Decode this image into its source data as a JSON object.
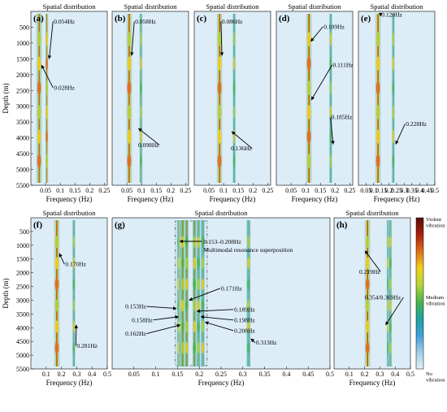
{
  "colorbar": {
    "top_label": "Violent vibration",
    "mid_label": "Medium vibration",
    "bottom_label": "No vibration",
    "colors": [
      "#e6f2fa",
      "#9fcdea",
      "#3f9fd8",
      "#1fa3a0",
      "#48b64c",
      "#b8d43a",
      "#f0d020",
      "#e07018",
      "#a82010",
      "#5a0c06"
    ]
  },
  "multimodal": {
    "range_label": "0.153–0.208Hz",
    "desc_label": "Multimodal resonance superposition",
    "box_color": "#555555",
    "text_color": "#8a5a3a"
  },
  "chart_data": [
    {
      "type": "heatmap",
      "panel": "(a)",
      "title": "Spatial distribution",
      "xlabel": "Frequency (Hz)",
      "ylabel": "Depth (m)",
      "xlim": [
        0.0,
        0.26
      ],
      "ylim": [
        0,
        5500
      ],
      "xticks": [
        0.05,
        0.1,
        0.15,
        0.2,
        0.25
      ],
      "yticks": [
        500,
        1000,
        1500,
        2000,
        2500,
        3000,
        3500,
        4000,
        4500,
        5000,
        5500
      ],
      "bands": [
        {
          "f": 0.028,
          "intensity": 0.85
        },
        {
          "f": 0.054,
          "intensity": 0.75
        }
      ],
      "annotations": [
        {
          "label": "0.054Hz",
          "f": 0.054
        },
        {
          "label": "0.028Hz",
          "f": 0.028
        }
      ]
    },
    {
      "type": "heatmap",
      "panel": "(b)",
      "title": "Spatial distribution",
      "xlabel": "Frequency (Hz)",
      "xlim": [
        0.0,
        0.26
      ],
      "xticks": [
        0.05,
        0.1,
        0.15,
        0.2,
        0.25
      ],
      "bands": [
        {
          "f": 0.058,
          "intensity": 1.0
        },
        {
          "f": 0.098,
          "intensity": 0.45
        }
      ],
      "annotations": [
        {
          "label": "0.058Hz",
          "f": 0.058
        },
        {
          "label": "0.098Hz",
          "f": 0.098
        }
      ]
    },
    {
      "type": "heatmap",
      "panel": "(c)",
      "title": "Spatial distribution",
      "xlabel": "Frequency (Hz)",
      "xlim": [
        0.0,
        0.26
      ],
      "xticks": [
        0.05,
        0.1,
        0.15,
        0.2,
        0.25
      ],
      "bands": [
        {
          "f": 0.086,
          "intensity": 1.0
        },
        {
          "f": 0.136,
          "intensity": 0.35
        }
      ],
      "annotations": [
        {
          "label": "0.086Hz",
          "f": 0.086
        },
        {
          "label": "0.136Hz",
          "f": 0.136
        }
      ]
    },
    {
      "type": "heatmap",
      "panel": "(d)",
      "title": "Spatial distribution",
      "xlabel": "Frequency (Hz)",
      "xlim": [
        0.0,
        0.26
      ],
      "xticks": [
        0.05,
        0.1,
        0.15,
        0.2,
        0.25
      ],
      "bands": [
        {
          "f": 0.109,
          "intensity": 0.55
        },
        {
          "f": 0.111,
          "intensity": 1.0
        },
        {
          "f": 0.185,
          "intensity": 0.4
        }
      ],
      "annotations": [
        {
          "label": "0.109Hz",
          "f": 0.109
        },
        {
          "label": "0.111Hz",
          "f": 0.111
        },
        {
          "label": "0.185Hz",
          "f": 0.185
        }
      ]
    },
    {
      "type": "heatmap",
      "panel": "(e)",
      "title": "Spatial distribution",
      "xlabel": "Frequency (Hz)",
      "xlim": [
        0.0,
        0.5
      ],
      "xticks": [
        0.05,
        0.1,
        0.15,
        0.2,
        0.25,
        0.3,
        0.35,
        0.4,
        0.45,
        0.5
      ],
      "bands": [
        {
          "f": 0.128,
          "intensity": 1.0
        },
        {
          "f": 0.228,
          "intensity": 0.55
        }
      ],
      "annotations": [
        {
          "label": "0.128Hz",
          "f": 0.128
        },
        {
          "label": "0.228Hz",
          "f": 0.228
        }
      ]
    },
    {
      "type": "heatmap",
      "panel": "(f)",
      "title": "Spatial distribution",
      "xlabel": "Frequency (Hz)",
      "ylabel": "Depth (m)",
      "xlim": [
        0.0,
        0.5
      ],
      "ylim": [
        0,
        5500
      ],
      "xticks": [
        0.1,
        0.2,
        0.3,
        0.4,
        0.5
      ],
      "yticks": [
        500,
        1000,
        1500,
        2000,
        2500,
        3000,
        3500,
        4000,
        4500,
        5000,
        5500
      ],
      "bands": [
        {
          "f": 0.17,
          "intensity": 1.0
        },
        {
          "f": 0.281,
          "intensity": 0.45
        }
      ],
      "annotations": [
        {
          "label": "0.170Hz",
          "f": 0.17
        },
        {
          "label": "0.281Hz",
          "f": 0.281
        }
      ]
    },
    {
      "type": "heatmap",
      "panel": "(g)",
      "title": "Spatial distribution",
      "xlabel": "Frequency (Hz)",
      "xlim": [
        0.0,
        0.5
      ],
      "xticks": [
        0.05,
        0.1,
        0.15,
        0.2,
        0.25,
        0.3,
        0.35,
        0.4,
        0.45,
        0.5
      ],
      "bands": [
        {
          "f": 0.153,
          "intensity": 0.6
        },
        {
          "f": 0.158,
          "intensity": 0.6
        },
        {
          "f": 0.162,
          "intensity": 0.6
        },
        {
          "f": 0.171,
          "intensity": 0.65
        },
        {
          "f": 0.189,
          "intensity": 0.6
        },
        {
          "f": 0.198,
          "intensity": 0.55
        },
        {
          "f": 0.208,
          "intensity": 0.5
        },
        {
          "f": 0.313,
          "intensity": 0.4
        }
      ],
      "annotations": [
        {
          "label": "0.153Hz",
          "f": 0.153
        },
        {
          "label": "0.158Hz",
          "f": 0.158
        },
        {
          "label": "0.162Hz",
          "f": 0.162
        },
        {
          "label": "0.171Hz",
          "f": 0.171
        },
        {
          "label": "0.189Hz",
          "f": 0.189
        },
        {
          "label": "0.198Hz",
          "f": 0.198
        },
        {
          "label": "0.208Hz",
          "f": 0.208
        },
        {
          "label": "0.313Hz",
          "f": 0.313
        }
      ]
    },
    {
      "type": "heatmap",
      "panel": "(h)",
      "title": "Spatial distribution",
      "xlabel": "Frequency (Hz)",
      "xlim": [
        0.0,
        0.5
      ],
      "xticks": [
        0.1,
        0.2,
        0.3,
        0.4,
        0.5
      ],
      "bands": [
        {
          "f": 0.219,
          "intensity": 1.0
        },
        {
          "f": 0.354,
          "intensity": 0.45
        },
        {
          "f": 0.369,
          "intensity": 0.45
        }
      ],
      "annotations": [
        {
          "label": "0.219Hz",
          "f": 0.219
        },
        {
          "label": "0.354/0.369Hz",
          "f": 0.354
        }
      ]
    }
  ]
}
